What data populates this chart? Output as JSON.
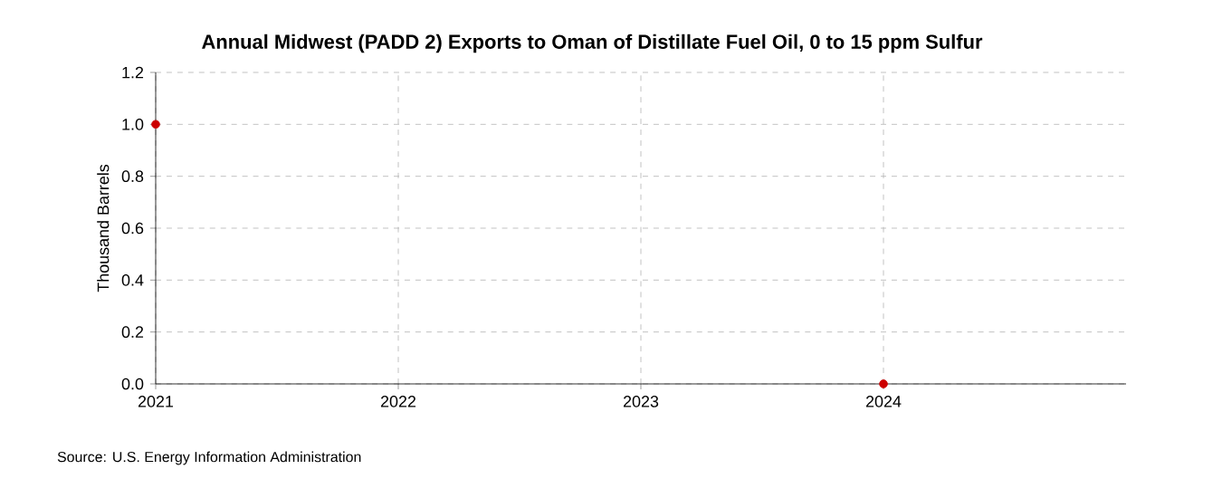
{
  "chart_data": {
    "type": "scatter",
    "title": "Annual Midwest (PADD 2) Exports to Oman of Distillate Fuel Oil, 0 to 15 ppm Sulfur",
    "ylabel": "Thousand Barrels",
    "x": [
      2021,
      2024
    ],
    "series": [
      {
        "color": "#cc0000",
        "values": [
          1.0,
          0.0
        ]
      }
    ],
    "xlim": [
      2021,
      2025
    ],
    "xticks": [
      2021,
      2022,
      2023,
      2024
    ],
    "ylim": [
      0,
      1.2
    ],
    "yticks": [
      {
        "value": 0,
        "label": "0.0"
      },
      0.2,
      0.4,
      0.6,
      0.8,
      {
        "value": 1,
        "label": "1.0"
      },
      1.2
    ],
    "grid": true,
    "annotations": [
      "Source: U.S. Energy Information Administration"
    ]
  }
}
